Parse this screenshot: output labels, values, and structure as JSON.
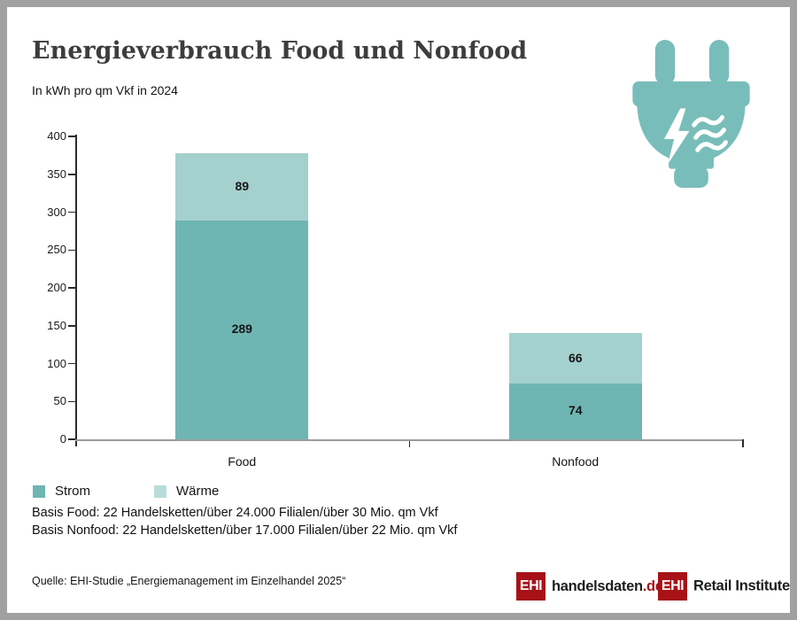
{
  "header": {
    "title": "Energieverbrauch Food und Nonfood",
    "subtitle": "In kWh pro qm Vkf in 2024"
  },
  "chart_data": {
    "type": "bar",
    "stacked": true,
    "title": "Energieverbrauch Food und Nonfood",
    "subtitle": "In kWh pro qm Vkf in 2024",
    "unit": "kWh pro qm Vkf",
    "categories": [
      "Food",
      "Nonfood"
    ],
    "series": [
      {
        "name": "Strom",
        "color": "#6fb5b3",
        "values": [
          289,
          74
        ]
      },
      {
        "name": "Wärme",
        "color": "#a4d0ce",
        "values": [
          89,
          66
        ]
      }
    ],
    "totals": [
      378,
      140
    ],
    "ylim": [
      0,
      400
    ],
    "yticks": [
      0,
      50,
      100,
      150,
      200,
      250,
      300,
      350,
      400
    ],
    "grid": false,
    "value_labels": true,
    "legend_position": "bottom-left"
  },
  "legend": [
    {
      "label": "Strom",
      "color": "#6fb5b3"
    },
    {
      "label": "Wärme",
      "color": "#b7dcda"
    }
  ],
  "notes": {
    "basis_food": "Basis Food: 22 Handelsketten/über 24.000 Filialen/über 30 Mio. qm Vkf",
    "basis_nonfood": "Basis Nonfood: 22 Handelsketten/über 17.000 Filialen/über 22 Mio. qm Vkf"
  },
  "footer": {
    "source": "Quelle: EHI-Studie „Energiemanagement im Einzelhandel 2025“"
  },
  "logos": {
    "handelsdaten": {
      "badge": "EHI",
      "name": "handelsdaten",
      "tld": ".de"
    },
    "retail_institute": {
      "badge": "EHI",
      "name": "Retail Institute",
      "registered": "®"
    }
  },
  "icon": {
    "name": "power-plug-energy-icon",
    "color": "#79bdba"
  },
  "colors": {
    "strom": "#6fb5b3",
    "waerme": "#a4d0ce",
    "waerme_legend": "#b7dcda",
    "icon_teal": "#79bdba",
    "logo_red": "#a71218",
    "axis": "#2b2b2b",
    "baseline": "#9b9b9b",
    "frame_border": "#a1a1a1",
    "title_text": "#3d3d3c"
  }
}
